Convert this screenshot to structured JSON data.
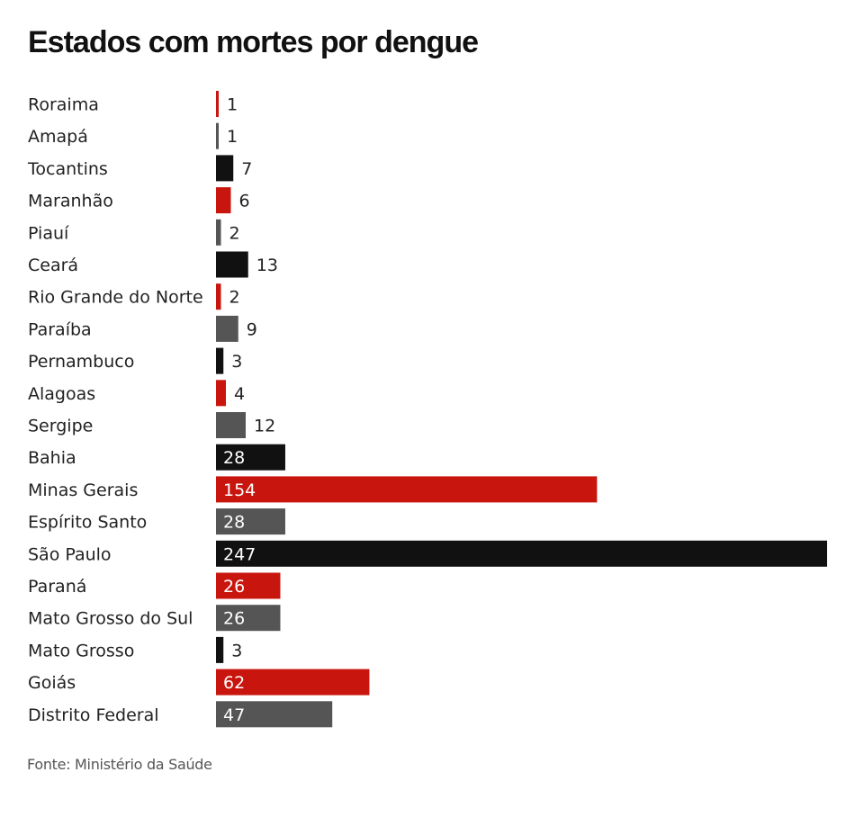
{
  "title": "Estados com mortes por dengue",
  "source": "Fonte: Ministério da Saúde",
  "colors": {
    "red": "#c8160e",
    "black": "#111111",
    "gray": "#555555"
  },
  "chart_data": {
    "type": "bar",
    "orientation": "horizontal",
    "title": "Estados com mortes por dengue",
    "categories": [
      "Roraima",
      "Amapá",
      "Tocantins",
      "Maranhão",
      "Piauí",
      "Ceará",
      "Rio Grande do Norte",
      "Paraíba",
      "Pernambuco",
      "Alagoas",
      "Sergipe",
      "Bahia",
      "Minas Gerais",
      "Espírito Santo",
      "São Paulo",
      "Paraná",
      "Mato Grosso do Sul",
      "Mato Grosso",
      "Goiás",
      "Distrito Federal"
    ],
    "values": [
      1,
      1,
      7,
      6,
      2,
      13,
      2,
      9,
      3,
      4,
      12,
      28,
      154,
      28,
      247,
      26,
      26,
      3,
      62,
      47
    ],
    "bar_colors": [
      "red",
      "gray",
      "black",
      "red",
      "gray",
      "black",
      "red",
      "gray",
      "black",
      "red",
      "gray",
      "black",
      "red",
      "gray",
      "black",
      "red",
      "gray",
      "black",
      "red",
      "gray"
    ],
    "xlim": [
      0,
      247
    ],
    "grid": false,
    "legend": "none"
  }
}
